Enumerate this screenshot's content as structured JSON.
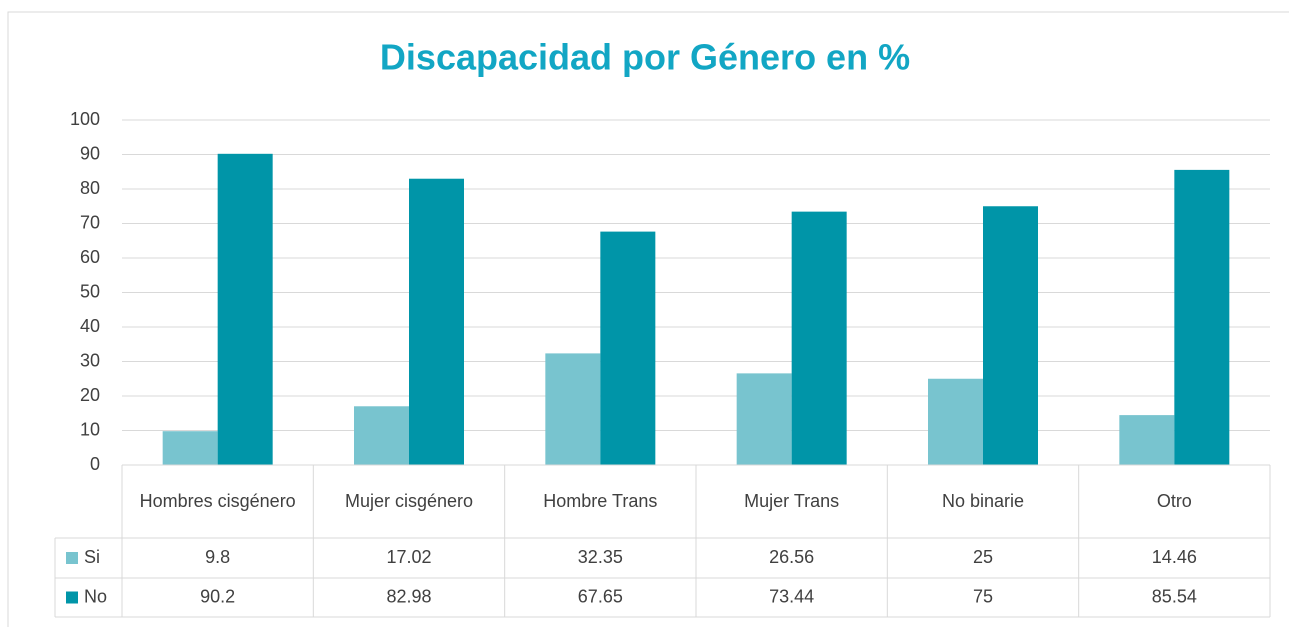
{
  "chart_data": {
    "type": "bar",
    "title": "Discapacidad por Género en %",
    "categories": [
      "Hombres cisgénero",
      "Mujer cisgénero",
      "Hombre Trans",
      "Mujer Trans",
      "No binarie",
      "Otro"
    ],
    "series": [
      {
        "name": "Si",
        "color": "#78c4cf",
        "values": [
          9.8,
          17.02,
          32.35,
          26.56,
          25,
          14.46
        ]
      },
      {
        "name": "No",
        "color": "#0095a8",
        "values": [
          90.2,
          82.98,
          67.65,
          73.44,
          75,
          85.54
        ]
      }
    ],
    "ylim": [
      0,
      100
    ],
    "yticks": [
      0,
      10,
      20,
      30,
      40,
      50,
      60,
      70,
      80,
      90,
      100
    ],
    "grid": true
  }
}
